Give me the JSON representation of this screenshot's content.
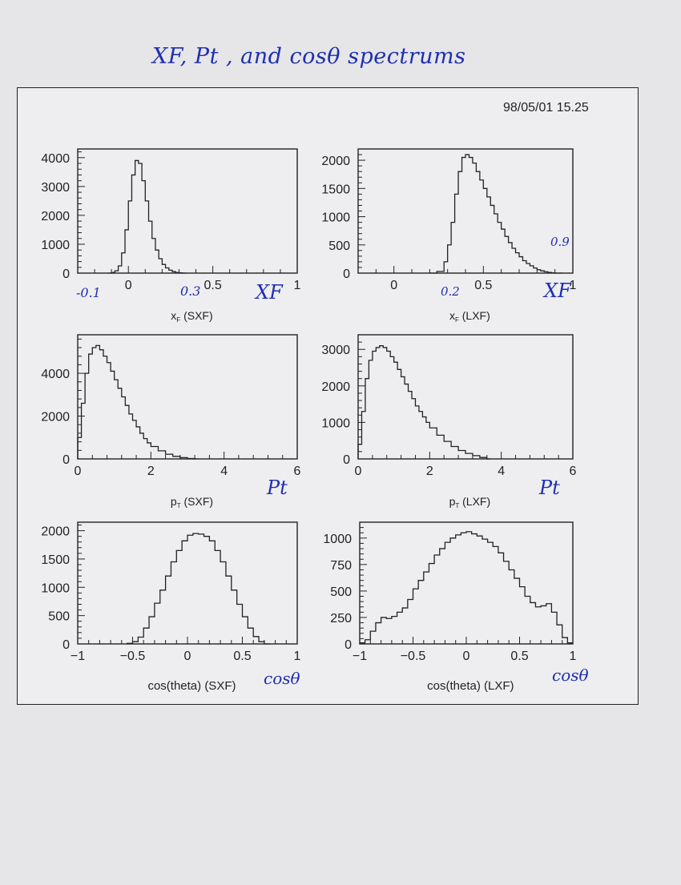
{
  "handwritten_title": "XF, Pt , and cosθ spectrums",
  "timestamp": "98/05/01   15.25",
  "colors": {
    "ink": "#222222",
    "pen": "#1f2fb0"
  },
  "chart_data": [
    {
      "type": "histogram-step",
      "xlabel": "x_F (SXF)",
      "xlim": [
        -0.3,
        1.0
      ],
      "ylim": [
        0,
        4300
      ],
      "xticks": [
        0,
        0.5,
        1
      ],
      "yticks": [
        0,
        1000,
        2000,
        3000,
        4000
      ],
      "x": [
        -0.12,
        -0.1,
        -0.08,
        -0.06,
        -0.04,
        -0.02,
        0,
        0.02,
        0.04,
        0.06,
        0.08,
        0.1,
        0.12,
        0.14,
        0.16,
        0.18,
        0.2,
        0.22,
        0.24,
        0.26,
        0.28,
        0.3,
        0.32
      ],
      "values": [
        0,
        20,
        80,
        250,
        700,
        1500,
        2500,
        3400,
        3900,
        3800,
        3200,
        2500,
        1800,
        1200,
        800,
        500,
        300,
        180,
        100,
        50,
        20,
        10,
        0
      ],
      "annotations": [
        {
          "text": "-0.1",
          "x": -0.1
        },
        {
          "text": "0.3",
          "x": 0.3
        },
        {
          "text": "XF",
          "x": 0.9
        }
      ]
    },
    {
      "type": "histogram-step",
      "xlabel": "x_F (LXF)",
      "xlim": [
        -0.2,
        1.0
      ],
      "ylim": [
        0,
        2200
      ],
      "xticks": [
        0,
        0.5,
        1
      ],
      "yticks": [
        0,
        500,
        1000,
        1500,
        2000
      ],
      "x": [
        0.2,
        0.24,
        0.28,
        0.3,
        0.32,
        0.34,
        0.36,
        0.38,
        0.4,
        0.42,
        0.44,
        0.46,
        0.48,
        0.5,
        0.52,
        0.54,
        0.56,
        0.58,
        0.6,
        0.62,
        0.64,
        0.66,
        0.68,
        0.7,
        0.72,
        0.74,
        0.76,
        0.78,
        0.8,
        0.82,
        0.84,
        0.86,
        0.88,
        0.9
      ],
      "values": [
        0,
        30,
        200,
        500,
        900,
        1400,
        1800,
        2050,
        2100,
        2050,
        1950,
        1800,
        1650,
        1500,
        1350,
        1200,
        1050,
        900,
        780,
        650,
        540,
        440,
        360,
        290,
        220,
        170,
        130,
        90,
        60,
        40,
        25,
        12,
        5,
        0
      ],
      "annotations": [
        {
          "text": "0.2",
          "x": 0.2
        },
        {
          "text": "0.9",
          "x": 0.9
        },
        {
          "text": "XF",
          "x": 0.9
        }
      ]
    },
    {
      "type": "histogram-step",
      "xlabel": "p_T (SXF)",
      "xlim": [
        0,
        6
      ],
      "ylim": [
        0,
        5800
      ],
      "xticks": [
        0,
        2,
        4,
        6
      ],
      "yticks": [
        0,
        2000,
        4000
      ],
      "x": [
        0,
        0.1,
        0.2,
        0.3,
        0.4,
        0.5,
        0.6,
        0.7,
        0.8,
        0.9,
        1.0,
        1.1,
        1.2,
        1.3,
        1.4,
        1.5,
        1.6,
        1.7,
        1.8,
        1.9,
        2.0,
        2.2,
        2.4,
        2.6,
        2.8,
        3.0,
        3.2
      ],
      "values": [
        1000,
        2600,
        4000,
        4900,
        5200,
        5300,
        5100,
        4800,
        4500,
        4100,
        3700,
        3300,
        2900,
        2500,
        2100,
        1800,
        1500,
        1200,
        950,
        750,
        580,
        380,
        220,
        120,
        60,
        20,
        0
      ],
      "annotations": [
        {
          "text": "Pt",
          "x": 5
        }
      ]
    },
    {
      "type": "histogram-step",
      "xlabel": "p_T (LXF)",
      "xlim": [
        0,
        6
      ],
      "ylim": [
        0,
        3400
      ],
      "xticks": [
        0,
        2,
        4,
        6
      ],
      "yticks": [
        0,
        1000,
        2000,
        3000
      ],
      "x": [
        0,
        0.1,
        0.2,
        0.3,
        0.4,
        0.5,
        0.6,
        0.7,
        0.8,
        0.9,
        1.0,
        1.1,
        1.2,
        1.3,
        1.4,
        1.5,
        1.6,
        1.7,
        1.8,
        1.9,
        2.0,
        2.2,
        2.4,
        2.6,
        2.8,
        3.0,
        3.2,
        3.4,
        3.6
      ],
      "values": [
        400,
        1300,
        2200,
        2700,
        2950,
        3050,
        3100,
        3050,
        2950,
        2800,
        2650,
        2450,
        2250,
        2050,
        1850,
        1650,
        1450,
        1300,
        1150,
        1000,
        850,
        650,
        480,
        340,
        230,
        150,
        90,
        40,
        0
      ],
      "annotations": [
        {
          "text": "Pt",
          "x": 5
        }
      ]
    },
    {
      "type": "histogram-step",
      "xlabel": "cos(theta) (SXF)",
      "xlim": [
        -1,
        1
      ],
      "ylim": [
        0,
        2150
      ],
      "xticks": [
        -1,
        -0.5,
        0,
        0.5,
        1
      ],
      "yticks": [
        0,
        500,
        1000,
        1500,
        2000
      ],
      "x": [
        -0.55,
        -0.5,
        -0.45,
        -0.4,
        -0.35,
        -0.3,
        -0.25,
        -0.2,
        -0.15,
        -0.1,
        -0.05,
        0,
        0.05,
        0.1,
        0.15,
        0.2,
        0.25,
        0.3,
        0.35,
        0.4,
        0.45,
        0.5,
        0.55,
        0.6,
        0.65,
        0.7
      ],
      "values": [
        10,
        40,
        120,
        280,
        480,
        720,
        950,
        1200,
        1450,
        1650,
        1820,
        1920,
        1950,
        1940,
        1900,
        1820,
        1650,
        1450,
        1200,
        950,
        700,
        480,
        280,
        130,
        40,
        0
      ],
      "annotations": [
        {
          "text": "cosθ",
          "x": 0.9
        }
      ]
    },
    {
      "type": "histogram-step",
      "xlabel": "cos(theta) (LXF)",
      "xlim": [
        -1,
        1
      ],
      "ylim": [
        0,
        1150
      ],
      "xticks": [
        -1,
        -0.5,
        0,
        0.5,
        1
      ],
      "yticks": [
        0,
        250,
        500,
        750,
        1000
      ],
      "x": [
        -1,
        -0.95,
        -0.9,
        -0.85,
        -0.8,
        -0.75,
        -0.7,
        -0.65,
        -0.6,
        -0.55,
        -0.5,
        -0.45,
        -0.4,
        -0.35,
        -0.3,
        -0.25,
        -0.2,
        -0.15,
        -0.1,
        -0.05,
        0,
        0.05,
        0.1,
        0.15,
        0.2,
        0.25,
        0.3,
        0.35,
        0.4,
        0.45,
        0.5,
        0.55,
        0.6,
        0.65,
        0.7,
        0.75,
        0.8,
        0.85,
        0.9,
        0.95
      ],
      "values": [
        10,
        40,
        120,
        200,
        250,
        240,
        260,
        300,
        340,
        420,
        520,
        600,
        680,
        760,
        840,
        900,
        960,
        1000,
        1030,
        1050,
        1060,
        1040,
        1020,
        990,
        960,
        920,
        860,
        780,
        700,
        620,
        540,
        450,
        390,
        350,
        360,
        380,
        300,
        180,
        60,
        10
      ],
      "annotations": [
        {
          "text": "cosθ",
          "x": 0.9
        }
      ]
    }
  ],
  "panels": [
    {
      "xlabel_main": "x",
      "xlabel_sub": "F",
      "xlabel_rest": " (SXF)"
    },
    {
      "xlabel_main": "x",
      "xlabel_sub": "F",
      "xlabel_rest": " (LXF)"
    },
    {
      "xlabel_main": "p",
      "xlabel_sub": "T",
      "xlabel_rest": " (SXF)"
    },
    {
      "xlabel_main": "p",
      "xlabel_sub": "T",
      "xlabel_rest": " (LXF)"
    },
    {
      "xlabel_main": "cos(theta) (SXF)",
      "xlabel_sub": "",
      "xlabel_rest": ""
    },
    {
      "xlabel_main": "cos(theta) (LXF)",
      "xlabel_sub": "",
      "xlabel_rest": ""
    }
  ]
}
